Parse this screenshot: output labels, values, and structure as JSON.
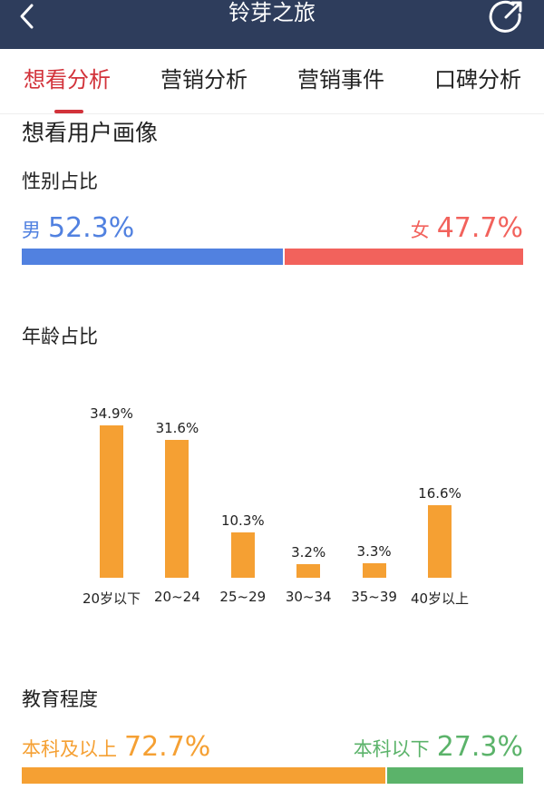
{
  "header": {
    "title": "铃芽之旅"
  },
  "tabs": [
    {
      "label": "想看分析",
      "active": true
    },
    {
      "label": "营销分析"
    },
    {
      "label": "营销事件"
    },
    {
      "label": "口碑分析"
    }
  ],
  "section": {
    "title": "想看用户画像"
  },
  "gender": {
    "title": "性别占比",
    "male": {
      "label": "男",
      "value": "52.3%",
      "pct": 52.3,
      "color": "#5181e0"
    },
    "female": {
      "label": "女",
      "value": "47.7%",
      "pct": 47.7,
      "color": "#f2625c"
    }
  },
  "age": {
    "title": "年龄占比",
    "chart_data": {
      "type": "bar",
      "categories": [
        "20岁以下",
        "20~24",
        "25~29",
        "30~34",
        "35~39",
        "40岁以上"
      ],
      "values": [
        34.9,
        31.6,
        10.3,
        3.2,
        3.3,
        16.6
      ],
      "labels": [
        "34.9%",
        "31.6%",
        "10.3%",
        "3.2%",
        "3.3%",
        "16.6%"
      ],
      "color": "#f5a033"
    }
  },
  "education": {
    "title": "教育程度",
    "above": {
      "label": "本科及以上",
      "value": "72.7%",
      "pct": 72.7,
      "color": "#f5a033"
    },
    "below": {
      "label": "本科以下",
      "value": "27.3%",
      "pct": 27.3,
      "color": "#5bb36a"
    }
  }
}
